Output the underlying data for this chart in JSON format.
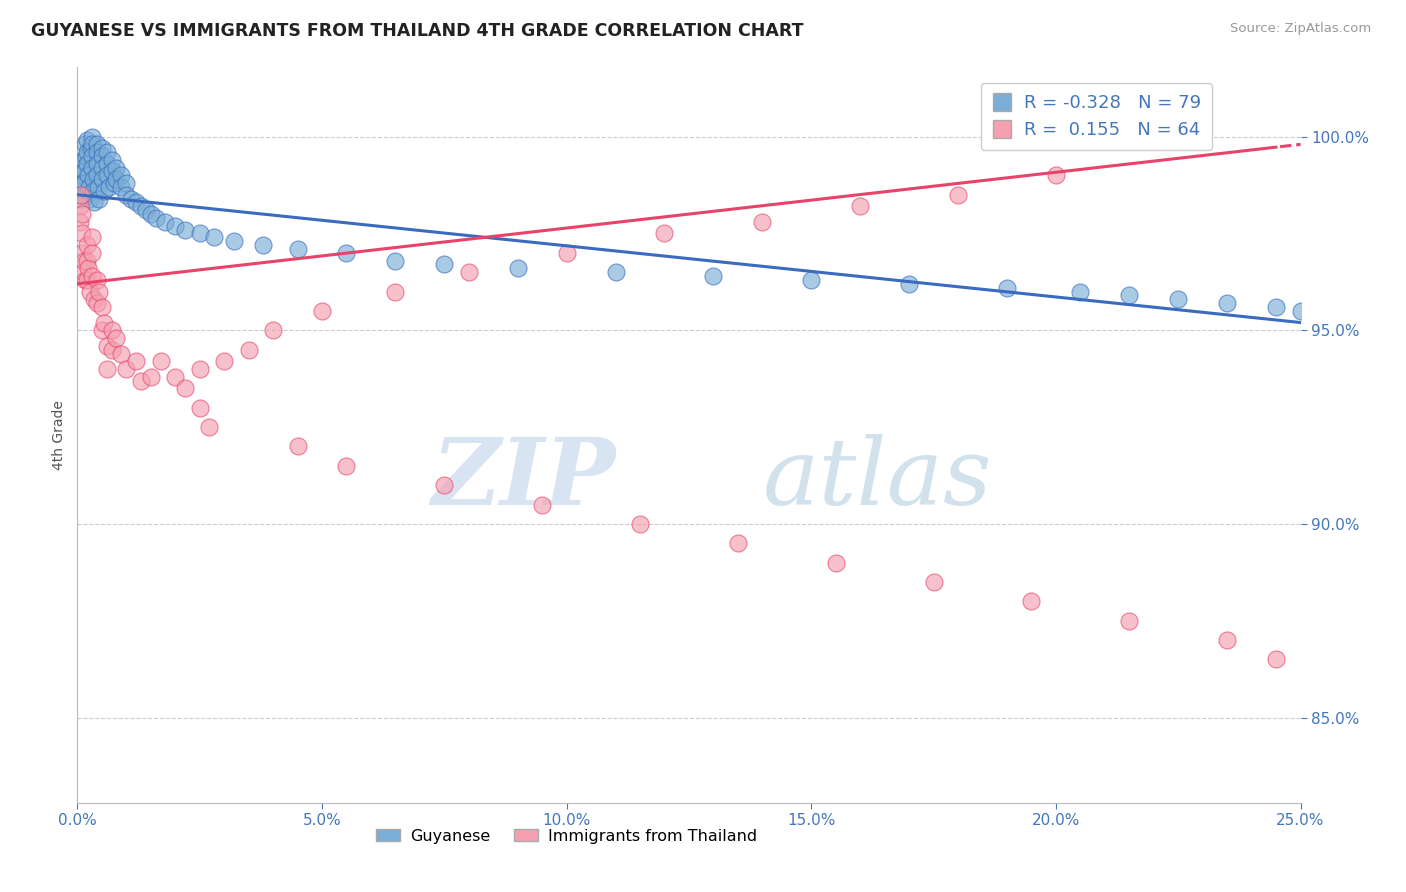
{
  "title": "GUYANESE VS IMMIGRANTS FROM THAILAND 4TH GRADE CORRELATION CHART",
  "source": "Source: ZipAtlas.com",
  "xlabel_label": "Guyanese",
  "ylabel_label": "4th Grade",
  "legend_label1": "Guyanese",
  "legend_label2": "Immigrants from Thailand",
  "r1": -0.328,
  "n1": 79,
  "r2": 0.155,
  "n2": 64,
  "color_blue": "#7aaed6",
  "color_pink": "#f4a0b0",
  "line_blue": "#3a6bbf",
  "line_pink": "#e8436a",
  "xmin": 0.0,
  "xmax": 0.25,
  "ymin": 0.828,
  "ymax": 1.018,
  "blue_x": [
    0.0005,
    0.0005,
    0.0007,
    0.0008,
    0.001,
    0.001,
    0.0012,
    0.0013,
    0.0014,
    0.0015,
    0.0016,
    0.0018,
    0.002,
    0.002,
    0.002,
    0.0022,
    0.0023,
    0.0025,
    0.0027,
    0.003,
    0.003,
    0.003,
    0.003,
    0.0032,
    0.0033,
    0.0035,
    0.004,
    0.004,
    0.004,
    0.004,
    0.0042,
    0.0045,
    0.005,
    0.005,
    0.005,
    0.005,
    0.0055,
    0.006,
    0.006,
    0.006,
    0.0065,
    0.007,
    0.007,
    0.0075,
    0.008,
    0.008,
    0.009,
    0.009,
    0.01,
    0.01,
    0.011,
    0.012,
    0.013,
    0.014,
    0.015,
    0.016,
    0.018,
    0.02,
    0.022,
    0.025,
    0.028,
    0.032,
    0.038,
    0.045,
    0.055,
    0.065,
    0.075,
    0.09,
    0.11,
    0.13,
    0.15,
    0.17,
    0.19,
    0.205,
    0.215,
    0.225,
    0.235,
    0.245,
    0.25
  ],
  "blue_y": [
    0.988,
    0.984,
    0.99,
    0.985,
    0.992,
    0.988,
    0.994,
    0.991,
    0.988,
    0.985,
    0.998,
    0.995,
    0.999,
    0.996,
    0.993,
    0.99,
    0.987,
    0.984,
    0.997,
    1.0,
    0.998,
    0.995,
    0.992,
    0.989,
    0.986,
    0.983,
    0.998,
    0.996,
    0.993,
    0.99,
    0.987,
    0.984,
    0.997,
    0.995,
    0.992,
    0.989,
    0.986,
    0.996,
    0.993,
    0.99,
    0.987,
    0.994,
    0.991,
    0.988,
    0.992,
    0.989,
    0.99,
    0.987,
    0.988,
    0.985,
    0.984,
    0.983,
    0.982,
    0.981,
    0.98,
    0.979,
    0.978,
    0.977,
    0.976,
    0.975,
    0.974,
    0.973,
    0.972,
    0.971,
    0.97,
    0.968,
    0.967,
    0.966,
    0.965,
    0.964,
    0.963,
    0.962,
    0.961,
    0.96,
    0.959,
    0.958,
    0.957,
    0.956,
    0.955
  ],
  "pink_x": [
    0.0005,
    0.0006,
    0.0007,
    0.0009,
    0.001,
    0.001,
    0.0012,
    0.0014,
    0.0016,
    0.002,
    0.002,
    0.002,
    0.0022,
    0.0025,
    0.003,
    0.003,
    0.003,
    0.0035,
    0.004,
    0.004,
    0.0045,
    0.005,
    0.005,
    0.0055,
    0.006,
    0.006,
    0.007,
    0.007,
    0.008,
    0.009,
    0.01,
    0.012,
    0.013,
    0.015,
    0.017,
    0.02,
    0.022,
    0.025,
    0.03,
    0.035,
    0.04,
    0.05,
    0.065,
    0.08,
    0.1,
    0.12,
    0.14,
    0.16,
    0.18,
    0.2,
    0.025,
    0.027,
    0.045,
    0.055,
    0.075,
    0.095,
    0.115,
    0.135,
    0.155,
    0.175,
    0.195,
    0.215,
    0.235,
    0.245
  ],
  "pink_y": [
    0.982,
    0.978,
    0.985,
    0.98,
    0.975,
    0.97,
    0.965,
    0.968,
    0.963,
    0.972,
    0.968,
    0.963,
    0.966,
    0.96,
    0.974,
    0.97,
    0.964,
    0.958,
    0.963,
    0.957,
    0.96,
    0.956,
    0.95,
    0.952,
    0.946,
    0.94,
    0.95,
    0.945,
    0.948,
    0.944,
    0.94,
    0.942,
    0.937,
    0.938,
    0.942,
    0.938,
    0.935,
    0.94,
    0.942,
    0.945,
    0.95,
    0.955,
    0.96,
    0.965,
    0.97,
    0.975,
    0.978,
    0.982,
    0.985,
    0.99,
    0.93,
    0.925,
    0.92,
    0.915,
    0.91,
    0.905,
    0.9,
    0.895,
    0.89,
    0.885,
    0.88,
    0.875,
    0.87,
    0.865
  ],
  "watermark_zip": "ZIP",
  "watermark_atlas": "atlas",
  "title_color": "#333333",
  "axis_color": "#4477bb",
  "grid_color": "#cccccc",
  "tick_color": "#4477bb",
  "yticks": [
    0.85,
    0.9,
    0.95,
    1.0
  ],
  "xticks": [
    0.0,
    0.05,
    0.1,
    0.15,
    0.2,
    0.25
  ]
}
